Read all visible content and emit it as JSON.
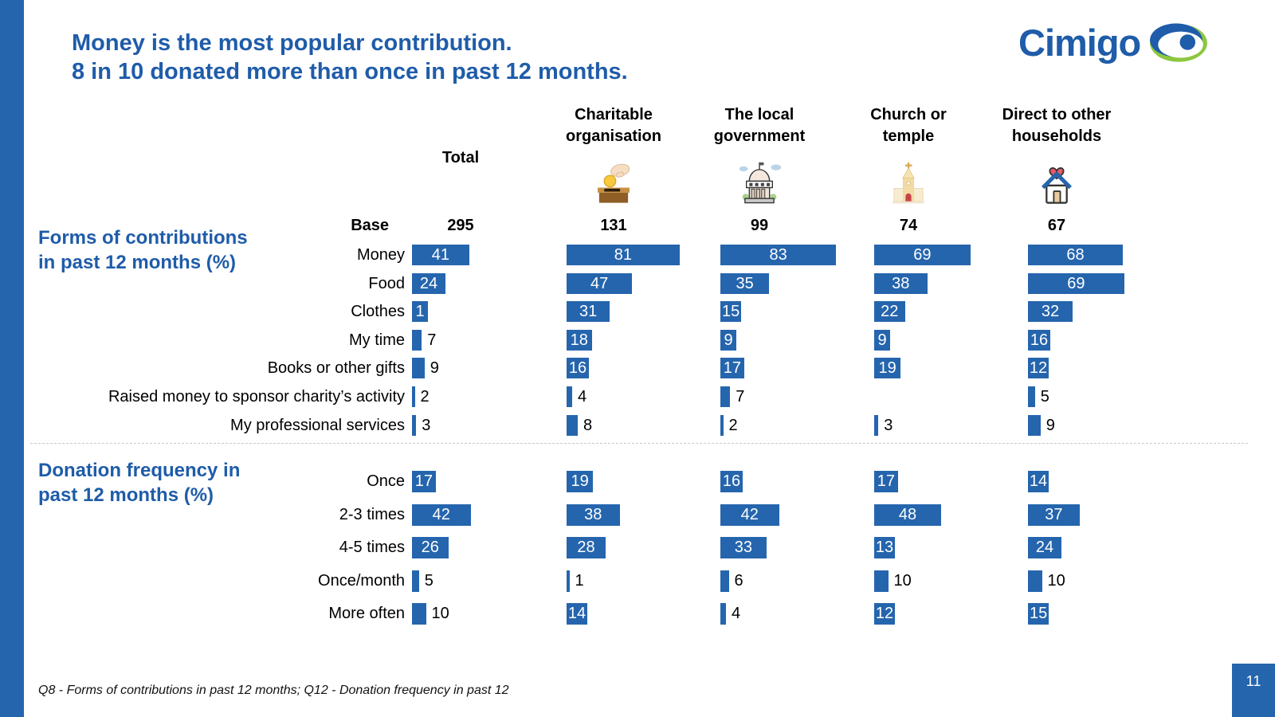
{
  "slide": {
    "title": "Money is the most popular contribution.\n8 in 10 donated more than once in past 12 months.",
    "logo_text": "Cimigo",
    "base_label": "Base",
    "footer": "Q8 - Forms of contributions in past 12 months; Q12 - Donation frequency in past 12",
    "page_number": "11",
    "colors": {
      "accent_blue": "#1F5CA9",
      "bar_blue": "#2565AD",
      "logo_green": "#8DC63F"
    },
    "icons": [
      "donation-box-icon",
      "government-building-icon",
      "church-icon",
      "house-heart-icon"
    ]
  },
  "chart_data": {
    "type": "bar",
    "orientation": "horizontal",
    "unit": "%",
    "xlim": [
      0,
      100
    ],
    "grid": false,
    "legend": false,
    "columns": [
      {
        "label": "Total",
        "base": "295",
        "icon": null
      },
      {
        "label": "Charitable\norganisation",
        "base": "131",
        "icon": "donation-box-icon"
      },
      {
        "label": "The local\ngovernment",
        "base": "99",
        "icon": "government-building-icon"
      },
      {
        "label": "Church or\ntemple",
        "base": "74",
        "icon": "church-icon"
      },
      {
        "label": "Direct to other\nhouseholds",
        "base": "67",
        "icon": "house-heart-icon"
      }
    ],
    "sections": [
      {
        "title": "Forms of contributions\nin past 12 months (%)",
        "categories": [
          "Money",
          "Food",
          "Clothes",
          "My time",
          "Books or other gifts",
          "Raised money to sponsor charity’s activity",
          "My professional services"
        ],
        "series": [
          {
            "name": "Total",
            "values": [
              41,
              24,
              1,
              7,
              9,
              2,
              3
            ],
            "label_inside": [
              true,
              true,
              true,
              false,
              false,
              false,
              false
            ]
          },
          {
            "name": "Charitable organisation",
            "values": [
              81,
              47,
              31,
              18,
              16,
              4,
              8
            ],
            "label_inside": [
              true,
              true,
              true,
              true,
              true,
              false,
              false
            ]
          },
          {
            "name": "The local government",
            "values": [
              83,
              35,
              15,
              9,
              17,
              7,
              2
            ],
            "label_inside": [
              true,
              true,
              true,
              true,
              true,
              false,
              false
            ]
          },
          {
            "name": "Church or temple",
            "values": [
              69,
              38,
              22,
              9,
              19,
              null,
              3
            ],
            "label_inside": [
              true,
              true,
              true,
              true,
              true,
              null,
              false
            ]
          },
          {
            "name": "Direct to other households",
            "values": [
              68,
              69,
              32,
              16,
              12,
              5,
              9
            ],
            "label_inside": [
              true,
              true,
              true,
              true,
              true,
              false,
              false
            ]
          }
        ]
      },
      {
        "title": "Donation frequency in\npast 12 months (%)",
        "categories": [
          "Once",
          "2-3 times",
          "4-5 times",
          "Once/month",
          "More often"
        ],
        "series": [
          {
            "name": "Total",
            "values": [
              17,
              42,
              26,
              5,
              10
            ],
            "label_inside": [
              true,
              true,
              true,
              false,
              false
            ]
          },
          {
            "name": "Charitable organisation",
            "values": [
              19,
              38,
              28,
              1,
              14
            ],
            "label_inside": [
              true,
              true,
              true,
              false,
              true
            ]
          },
          {
            "name": "The local government",
            "values": [
              16,
              42,
              33,
              6,
              4
            ],
            "label_inside": [
              true,
              true,
              true,
              false,
              false
            ]
          },
          {
            "name": "Church or temple",
            "values": [
              17,
              48,
              13,
              10,
              12
            ],
            "label_inside": [
              true,
              true,
              true,
              false,
              true
            ]
          },
          {
            "name": "Direct to other households",
            "values": [
              14,
              37,
              24,
              10,
              15
            ],
            "label_inside": [
              true,
              true,
              true,
              false,
              true
            ]
          }
        ]
      }
    ]
  }
}
